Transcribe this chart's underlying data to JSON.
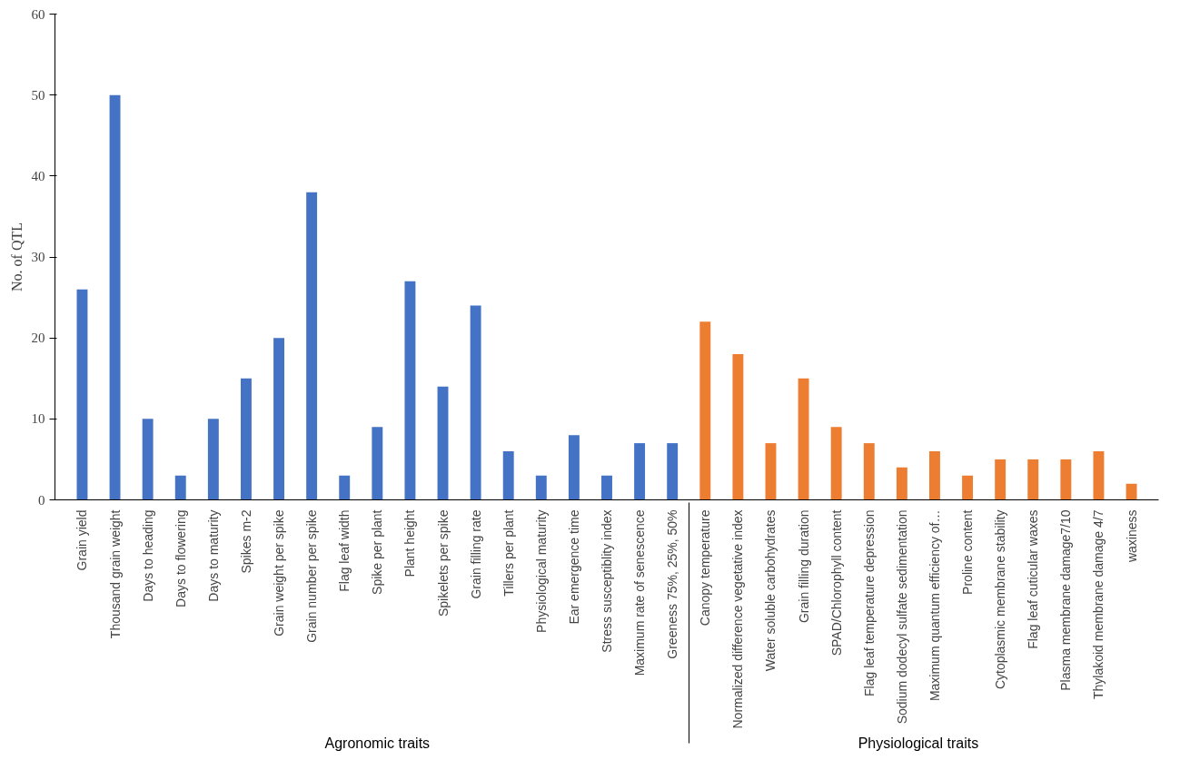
{
  "chart_data": {
    "type": "bar",
    "ylabel": "No. of QTL",
    "categories": [
      "Grain yield",
      "Thousand grain weight",
      "Days to heading",
      "Days to flowering",
      "Days to maturity",
      "Spikes m-2",
      "Grain weight per spike",
      "Grain number per spike",
      "Flag leaf width",
      "Spike per plant",
      "Plant height",
      "Spikelets per spike",
      "Grain filling rate",
      "Tillers per plant",
      "Physiological maturity",
      "Ear emergence time",
      "Stress susceptiblity index",
      "Maximum rate of senescence",
      "Greeness 75%, 25%, 50%",
      "Canopy temperature",
      "Normalized difference vegetative index",
      "Water soluble carbohydrates",
      "Grain filling duration",
      "SPAD/Chlorophyll content",
      "Flag leaf temperature depression",
      "Sodium dodecyl sulfate sedimentation",
      "Maximum quantum efficiency of…",
      "Proline content",
      "Cytoplasmic membrane stability",
      "Flag leaf cuticular waxes",
      "Plasma membrane damage7/10",
      "Thylakoid membrane damage 4/7",
      "waxiness"
    ],
    "values": [
      26,
      50,
      10,
      3,
      10,
      15,
      20,
      38,
      3,
      9,
      27,
      14,
      24,
      6,
      3,
      8,
      3,
      7,
      7,
      22,
      18,
      7,
      15,
      9,
      7,
      4,
      6,
      3,
      5,
      5,
      5,
      6,
      2
    ],
    "colors": [
      "#4472c4",
      "#4472c4",
      "#4472c4",
      "#4472c4",
      "#4472c4",
      "#4472c4",
      "#4472c4",
      "#4472c4",
      "#4472c4",
      "#4472c4",
      "#4472c4",
      "#4472c4",
      "#4472c4",
      "#4472c4",
      "#4472c4",
      "#4472c4",
      "#4472c4",
      "#4472c4",
      "#4472c4",
      "#ed7d31",
      "#ed7d31",
      "#ed7d31",
      "#ed7d31",
      "#ed7d31",
      "#ed7d31",
      "#ed7d31",
      "#ed7d31",
      "#ed7d31",
      "#ed7d31",
      "#ed7d31",
      "#ed7d31",
      "#ed7d31",
      "#ed7d31"
    ],
    "annotations": [
      "Agronomic traits",
      "Physiological traits"
    ],
    "ylim": [
      0,
      60
    ],
    "yticks": [
      0,
      10,
      20,
      30,
      40,
      50,
      60
    ]
  }
}
